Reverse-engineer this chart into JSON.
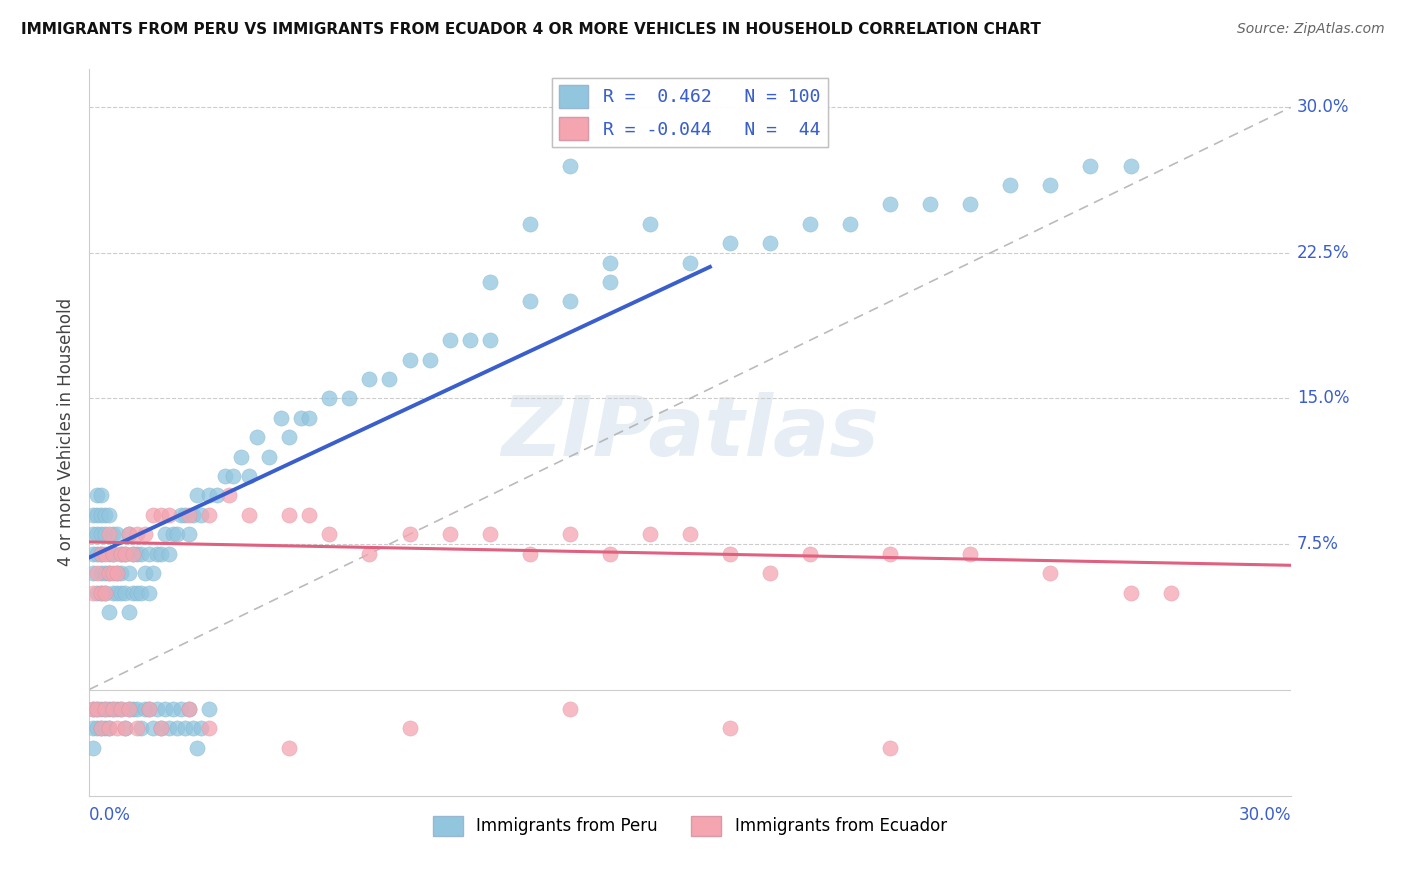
{
  "title": "IMMIGRANTS FROM PERU VS IMMIGRANTS FROM ECUADOR 4 OR MORE VEHICLES IN HOUSEHOLD CORRELATION CHART",
  "source": "Source: ZipAtlas.com",
  "ylabel_ticks": [
    "7.5%",
    "15.0%",
    "22.5%",
    "30.0%"
  ],
  "ylabel_vals": [
    0.075,
    0.15,
    0.225,
    0.3
  ],
  "legend_peru": "Immigrants from Peru",
  "legend_ecuador": "Immigrants from Ecuador",
  "peru_r": 0.462,
  "peru_n": 100,
  "ecuador_r": -0.044,
  "ecuador_n": 44,
  "blue_color": "#92C5DE",
  "pink_color": "#F4A5B0",
  "blue_line_color": "#3A5FCD",
  "pink_line_color": "#E06080",
  "xlim": [
    0.0,
    0.3
  ],
  "ylim": [
    -0.055,
    0.32
  ],
  "peru_x": [
    0.001,
    0.001,
    0.001,
    0.001,
    0.002,
    0.002,
    0.002,
    0.002,
    0.002,
    0.003,
    0.003,
    0.003,
    0.003,
    0.003,
    0.003,
    0.004,
    0.004,
    0.004,
    0.004,
    0.005,
    0.005,
    0.005,
    0.005,
    0.006,
    0.006,
    0.006,
    0.007,
    0.007,
    0.007,
    0.008,
    0.008,
    0.008,
    0.009,
    0.009,
    0.01,
    0.01,
    0.01,
    0.011,
    0.011,
    0.012,
    0.012,
    0.013,
    0.013,
    0.014,
    0.015,
    0.015,
    0.016,
    0.017,
    0.018,
    0.019,
    0.02,
    0.021,
    0.022,
    0.023,
    0.024,
    0.025,
    0.026,
    0.027,
    0.028,
    0.03,
    0.032,
    0.034,
    0.036,
    0.038,
    0.04,
    0.042,
    0.045,
    0.048,
    0.05,
    0.053,
    0.055,
    0.06,
    0.065,
    0.07,
    0.075,
    0.08,
    0.085,
    0.09,
    0.095,
    0.1,
    0.1,
    0.11,
    0.11,
    0.12,
    0.12,
    0.13,
    0.13,
    0.14,
    0.15,
    0.16,
    0.17,
    0.18,
    0.19,
    0.2,
    0.21,
    0.22,
    0.23,
    0.24,
    0.25,
    0.26
  ],
  "peru_y": [
    0.06,
    0.07,
    0.08,
    0.09,
    0.05,
    0.07,
    0.08,
    0.09,
    0.1,
    0.05,
    0.06,
    0.07,
    0.08,
    0.09,
    0.1,
    0.05,
    0.06,
    0.08,
    0.09,
    0.04,
    0.06,
    0.07,
    0.09,
    0.05,
    0.07,
    0.08,
    0.05,
    0.06,
    0.08,
    0.05,
    0.06,
    0.07,
    0.05,
    0.07,
    0.04,
    0.06,
    0.08,
    0.05,
    0.07,
    0.05,
    0.07,
    0.05,
    0.07,
    0.06,
    0.05,
    0.07,
    0.06,
    0.07,
    0.07,
    0.08,
    0.07,
    0.08,
    0.08,
    0.09,
    0.09,
    0.08,
    0.09,
    0.1,
    0.09,
    0.1,
    0.1,
    0.11,
    0.11,
    0.12,
    0.11,
    0.13,
    0.12,
    0.14,
    0.13,
    0.14,
    0.14,
    0.15,
    0.15,
    0.16,
    0.16,
    0.17,
    0.17,
    0.18,
    0.18,
    0.18,
    0.21,
    0.2,
    0.24,
    0.2,
    0.27,
    0.22,
    0.21,
    0.24,
    0.22,
    0.23,
    0.23,
    0.24,
    0.24,
    0.25,
    0.25,
    0.25,
    0.26,
    0.26,
    0.27,
    0.27
  ],
  "ecuador_x": [
    0.001,
    0.002,
    0.003,
    0.003,
    0.004,
    0.004,
    0.005,
    0.005,
    0.006,
    0.006,
    0.007,
    0.008,
    0.009,
    0.01,
    0.011,
    0.012,
    0.014,
    0.016,
    0.018,
    0.02,
    0.025,
    0.03,
    0.035,
    0.04,
    0.05,
    0.055,
    0.06,
    0.07,
    0.08,
    0.09,
    0.1,
    0.11,
    0.12,
    0.13,
    0.14,
    0.15,
    0.16,
    0.17,
    0.18,
    0.2,
    0.22,
    0.24,
    0.26,
    0.27
  ],
  "ecuador_y": [
    0.05,
    0.06,
    0.05,
    0.07,
    0.05,
    0.07,
    0.06,
    0.08,
    0.06,
    0.07,
    0.06,
    0.07,
    0.07,
    0.08,
    0.07,
    0.08,
    0.08,
    0.09,
    0.09,
    0.09,
    0.09,
    0.09,
    0.1,
    0.09,
    0.09,
    0.09,
    0.08,
    0.07,
    0.08,
    0.08,
    0.08,
    0.07,
    0.08,
    0.07,
    0.08,
    0.08,
    0.07,
    0.06,
    0.07,
    0.07,
    0.07,
    0.06,
    0.05,
    0.05
  ],
  "blue_scatter_extra_low_x": [
    0.001,
    0.001,
    0.001,
    0.002,
    0.002,
    0.003,
    0.003,
    0.004,
    0.004,
    0.005,
    0.005,
    0.006,
    0.007,
    0.008,
    0.009,
    0.01,
    0.011,
    0.012,
    0.013,
    0.014,
    0.015,
    0.016,
    0.017,
    0.018,
    0.019,
    0.02,
    0.021,
    0.022,
    0.023,
    0.024,
    0.025,
    0.026,
    0.027,
    0.028,
    0.03
  ],
  "blue_scatter_extra_low_y": [
    -0.01,
    -0.02,
    -0.03,
    -0.01,
    -0.02,
    -0.01,
    -0.02,
    -0.01,
    -0.02,
    -0.01,
    -0.02,
    -0.01,
    -0.01,
    -0.01,
    -0.02,
    -0.01,
    -0.01,
    -0.01,
    -0.02,
    -0.01,
    -0.01,
    -0.02,
    -0.01,
    -0.02,
    -0.01,
    -0.02,
    -0.01,
    -0.02,
    -0.01,
    -0.02,
    -0.01,
    -0.02,
    -0.03,
    -0.02,
    -0.01
  ],
  "pink_scatter_extra_low_x": [
    0.001,
    0.002,
    0.003,
    0.004,
    0.005,
    0.006,
    0.007,
    0.008,
    0.009,
    0.01,
    0.012,
    0.015,
    0.018,
    0.025,
    0.03,
    0.05,
    0.08,
    0.12,
    0.16,
    0.2
  ],
  "pink_scatter_extra_low_y": [
    -0.01,
    -0.01,
    -0.02,
    -0.01,
    -0.02,
    -0.01,
    -0.02,
    -0.01,
    -0.02,
    -0.01,
    -0.02,
    -0.01,
    -0.02,
    -0.01,
    -0.02,
    -0.03,
    -0.02,
    -0.01,
    -0.02,
    -0.03
  ]
}
